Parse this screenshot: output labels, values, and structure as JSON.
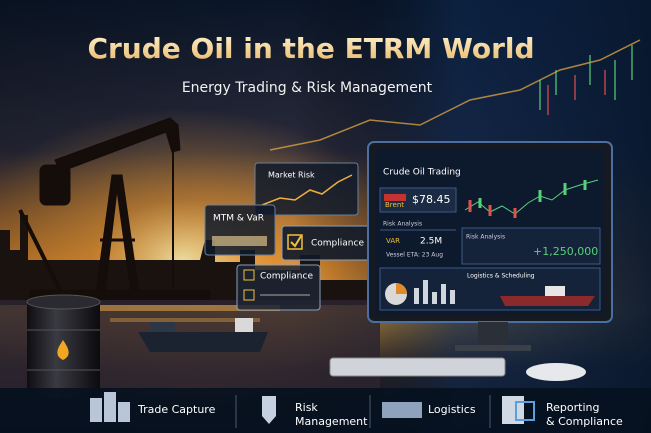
{
  "header": {
    "title": "Crude Oil in the ETRM World",
    "subtitle": "Energy Trading & Risk Management"
  },
  "panels": [
    {
      "title": "Market Risk"
    },
    {
      "title": "MTM & VaR"
    },
    {
      "title": "Compliance"
    },
    {
      "title": "Compliance"
    }
  ],
  "monitor": {
    "title": "Crude Oil Trading",
    "brent_label": "Brent",
    "brent_price": "$78.45",
    "risk_label": "Risk Analysis",
    "var_label": "VAR",
    "var_value": "2.5M",
    "vessel": "Vessel ETA: 23 Aug",
    "risk_label_2": "Risk Analysis",
    "pnl": "+1,250,000",
    "logistics": "Logistics & Scheduling"
  },
  "footer": {
    "items": [
      {
        "lines": [
          "Trade Capture"
        ]
      },
      {
        "lines": [
          "Risk",
          "Management"
        ]
      },
      {
        "lines": [
          "Logistics"
        ]
      },
      {
        "lines": [
          "Reporting",
          "& Compliance"
        ]
      }
    ]
  }
}
